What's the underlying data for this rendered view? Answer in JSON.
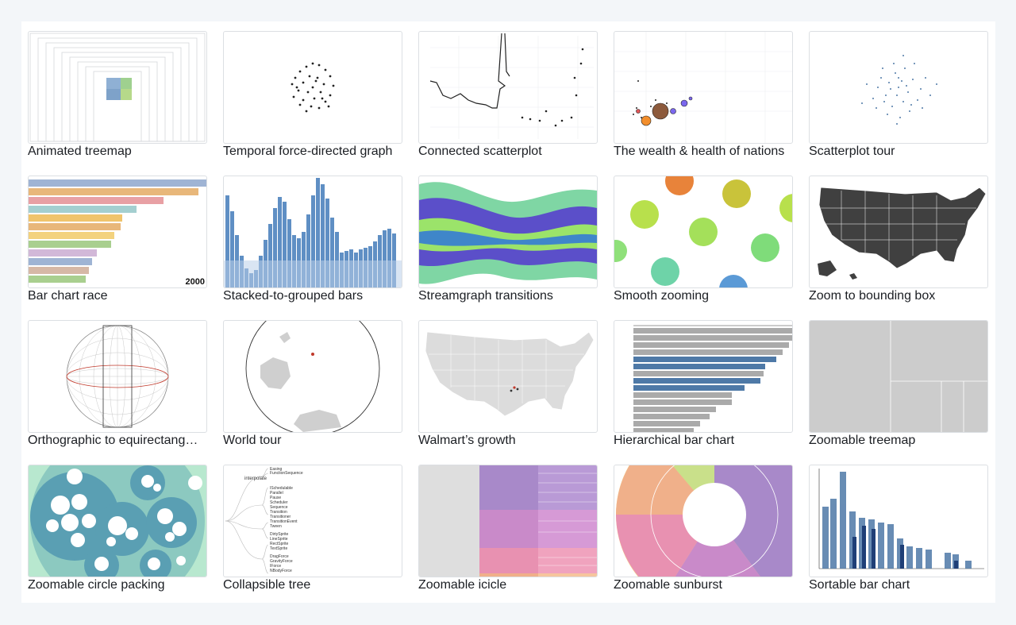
{
  "gallery": {
    "items": [
      {
        "title": "Animated treemap"
      },
      {
        "title": "Temporal force-directed graph"
      },
      {
        "title": "Connected scatterplot"
      },
      {
        "title": "The wealth & health of nations"
      },
      {
        "title": "Scatterplot tour"
      },
      {
        "title": "Bar chart race",
        "thumb_text": "2000"
      },
      {
        "title": "Stacked-to-grouped bars"
      },
      {
        "title": "Streamgraph transitions"
      },
      {
        "title": "Smooth zooming"
      },
      {
        "title": "Zoom to bounding box"
      },
      {
        "title": "Orthographic to equirectang…"
      },
      {
        "title": "World tour"
      },
      {
        "title": "Walmart’s growth"
      },
      {
        "title": "Hierarchical bar chart"
      },
      {
        "title": "Zoomable treemap"
      },
      {
        "title": "Zoomable circle packing"
      },
      {
        "title": "Collapsible tree",
        "thumb_text": "interpolate"
      },
      {
        "title": "Zoomable icicle"
      },
      {
        "title": "Zoomable sunburst"
      },
      {
        "title": "Sortable bar chart"
      }
    ]
  },
  "colors": {
    "page_bg": "#f3f6f9",
    "panel_bg": "#ffffff",
    "accent_blue": "#4e79a7",
    "thumb_border": "#dcdfe3",
    "text": "#1b1e23"
  }
}
